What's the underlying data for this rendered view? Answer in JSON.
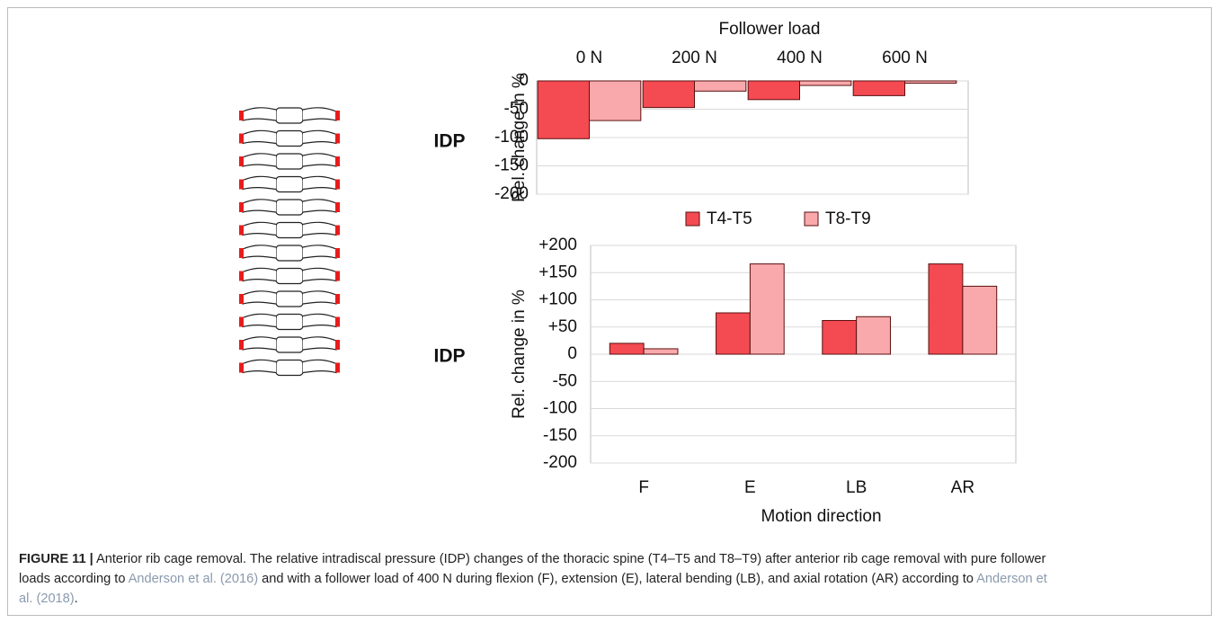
{
  "chart_data": [
    {
      "type": "bar",
      "title": "Follower load",
      "y_label": "Rel. change in %",
      "row_label": "IDP",
      "categories": [
        "0 N",
        "200 N",
        "400 N",
        "600 N"
      ],
      "series": [
        {
          "name": "T4-T5",
          "color": "#f44a52",
          "values": [
            -102,
            -47,
            -33,
            -26
          ]
        },
        {
          "name": "T8-T9",
          "color": "#f9a9ab",
          "values": [
            -70,
            -18,
            -8,
            -4
          ]
        }
      ],
      "ylim": [
        -200,
        0
      ],
      "yticks": [
        0,
        -50,
        -100,
        -150,
        -200
      ],
      "grid": true
    },
    {
      "type": "bar",
      "x_label": "Motion direction",
      "y_label": "Rel. change in %",
      "row_label": "IDP",
      "categories": [
        "F",
        "E",
        "LB",
        "AR"
      ],
      "series": [
        {
          "name": "T4-T5",
          "color": "#f44a52",
          "values": [
            20,
            76,
            62,
            166
          ]
        },
        {
          "name": "T8-T9",
          "color": "#f9a9ab",
          "values": [
            10,
            166,
            69,
            125
          ]
        }
      ],
      "ylim": [
        -200,
        200
      ],
      "yticks": [
        {
          "value": 200,
          "label": "+200"
        },
        {
          "value": 150,
          "label": "+150"
        },
        {
          "value": 100,
          "label": "+100"
        },
        {
          "value": 50,
          "label": "+50"
        },
        0,
        -50,
        -100,
        -150,
        -200
      ],
      "grid": true
    }
  ],
  "caption": {
    "label": "FIGURE 11 |",
    "text1": " Anterior rib cage removal. The relative intradiscal pressure (IDP) changes of the thoracic spine (T4–T5 and T8–T9) after anterior rib cage removal with pure follower loads according to ",
    "link1": "Anderson et al. (2016)",
    "text2": " and with a follower load of 400 N during flexion (F), extension (E), lateral bending (LB), and axial rotation (AR) according to ",
    "link2": "Anderson et al. (2018)",
    "text3": "."
  }
}
